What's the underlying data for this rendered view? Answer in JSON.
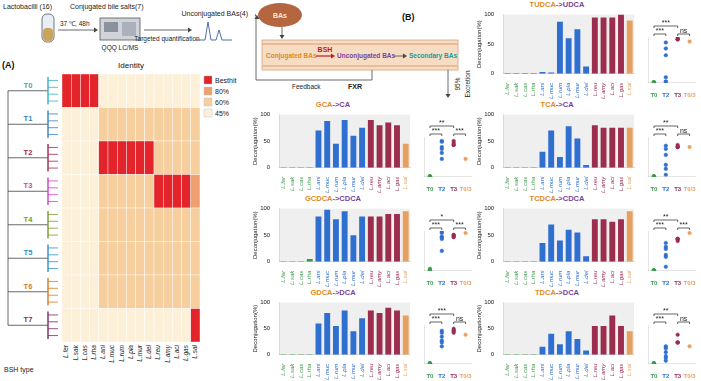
{
  "panel_a": {
    "label": "(A)",
    "workflow": {
      "strains": "Lactobacilli (16)",
      "substrates": "Conjugated bile salts(7)",
      "condition": "37 ℃, 48h",
      "instrument": "QQQ LC/MS",
      "method": "Targeted quantification",
      "products": "Unconjugated BAs(4)"
    },
    "heatmap": {
      "title": "Identity",
      "tree_label": "BSH type",
      "columns": [
        "L.fer",
        "L.sak",
        "L.cas",
        "L.rha",
        "L.ani",
        "L.muc",
        "L.rum",
        "L.pla",
        "L.mur",
        "L.del",
        "L.reu",
        "L.amy",
        "L.aci",
        "L.gas",
        "L.sal"
      ],
      "rows": [
        {
          "name": "T0",
          "color": "#37aec4",
          "values": [
            100,
            100,
            100,
            100,
            45,
            45,
            45,
            45,
            45,
            45,
            45,
            45,
            45,
            45,
            45
          ]
        },
        {
          "name": "T1",
          "color": "#3a7fc1",
          "values": [
            45,
            45,
            45,
            45,
            60,
            60,
            60,
            60,
            60,
            60,
            60,
            60,
            60,
            60,
            60
          ]
        },
        {
          "name": "T2",
          "color": "#a0294a",
          "values": [
            45,
            45,
            45,
            45,
            100,
            100,
            100,
            100,
            100,
            100,
            60,
            60,
            60,
            60,
            60
          ]
        },
        {
          "name": "T3",
          "color": "#cf3fc8",
          "values": [
            45,
            45,
            45,
            45,
            60,
            60,
            60,
            60,
            60,
            60,
            100,
            100,
            100,
            100,
            80
          ]
        },
        {
          "name": "T4",
          "color": "#7a9a2a",
          "values": [
            45,
            45,
            45,
            45,
            60,
            60,
            60,
            60,
            60,
            60,
            60,
            60,
            60,
            60,
            60
          ]
        },
        {
          "name": "T5",
          "color": "#2f8fc7",
          "values": [
            45,
            45,
            45,
            45,
            60,
            60,
            60,
            60,
            60,
            60,
            60,
            60,
            60,
            60,
            60
          ]
        },
        {
          "name": "T6",
          "color": "#d9781f",
          "values": [
            45,
            45,
            45,
            45,
            60,
            60,
            60,
            60,
            60,
            60,
            60,
            60,
            60,
            60,
            60
          ]
        },
        {
          "name": "T7",
          "color": "#7a2a6a",
          "values": [
            45,
            45,
            45,
            45,
            45,
            45,
            45,
            45,
            45,
            45,
            45,
            45,
            45,
            45,
            100
          ]
        }
      ],
      "legend": [
        {
          "label": "Besthit",
          "value": 100
        },
        {
          "label": "80%",
          "value": 80
        },
        {
          "label": "60%",
          "value": 60
        },
        {
          "label": "45%",
          "value": 45
        }
      ]
    }
  },
  "panel_b": {
    "label": "(B)",
    "diagram": {
      "liver": "BAs",
      "conjugated": "Conjugated BAs",
      "enzyme": "BSH",
      "unconjugated": "Unconjugated BAs",
      "secondary": "Secondary BAs",
      "feedback": "Feedback",
      "receptor": "FXR",
      "excretion_share": "95%",
      "excretion": "Excretion"
    },
    "groups": [
      {
        "name": "T0",
        "color": "#3c9a4a"
      },
      {
        "name": "T2",
        "color": "#2e6fd0"
      },
      {
        "name": "T3",
        "color": "#9b2d4f"
      },
      {
        "name": "T0/3",
        "color": "#e8a060"
      }
    ]
  },
  "chart_data": [
    {
      "type": "bar",
      "title": "TUDCA->UDCA",
      "y_label": "Deconjugation(%)",
      "ylim": [
        0,
        100
      ],
      "yticks": [
        0,
        50,
        100
      ],
      "categories": [
        "L.fer",
        "L.sak",
        "L.cas",
        "L.rha",
        "L.ani",
        "L.muc",
        "L.rum",
        "L.pla",
        "L.mur",
        "L.del",
        "L.reu",
        "L.amy",
        "L.aci",
        "L.gas",
        "L.sal"
      ],
      "colors": [
        "#3c9a4a",
        "#3c9a4a",
        "#3c9a4a",
        "#3c9a4a",
        "#2e6fd0",
        "#2e6fd0",
        "#2e6fd0",
        "#2e6fd0",
        "#2e6fd0",
        "#2e6fd0",
        "#9b2d4f",
        "#9b2d4f",
        "#9b2d4f",
        "#9b2d4f",
        "#e8a060"
      ],
      "values": [
        1,
        1,
        1,
        1,
        3,
        2,
        88,
        60,
        75,
        12,
        95,
        95,
        95,
        100,
        90
      ],
      "significance": [
        {
          "groups": [
            "T0",
            "T2"
          ],
          "label": "***"
        },
        {
          "groups": [
            "T0",
            "T3"
          ],
          "label": "***"
        },
        {
          "groups": [
            "T3",
            "T0/3"
          ],
          "label": "ns"
        }
      ]
    },
    {
      "type": "bar",
      "title": "GCA->CA",
      "y_label": "Deconjugation(%)",
      "ylim": [
        0,
        100
      ],
      "yticks": [
        0,
        50,
        100
      ],
      "categories": [
        "L.fer",
        "L.sak",
        "L.cas",
        "L.rha",
        "L.ani",
        "L.muc",
        "L.rum",
        "L.pla",
        "L.mur",
        "L.del",
        "L.reu",
        "L.amy",
        "L.aci",
        "L.gas",
        "L.sal"
      ],
      "colors": [
        "#3c9a4a",
        "#3c9a4a",
        "#3c9a4a",
        "#3c9a4a",
        "#2e6fd0",
        "#2e6fd0",
        "#2e6fd0",
        "#2e6fd0",
        "#2e6fd0",
        "#2e6fd0",
        "#9b2d4f",
        "#9b2d4f",
        "#9b2d4f",
        "#9b2d4f",
        "#e8a060"
      ],
      "values": [
        1,
        1,
        1,
        1,
        70,
        88,
        45,
        90,
        60,
        75,
        90,
        80,
        85,
        80,
        45
      ],
      "significance": [
        {
          "groups": [
            "T0",
            "T2"
          ],
          "label": "***"
        },
        {
          "groups": [
            "T0",
            "T3"
          ],
          "label": "**"
        },
        {
          "groups": [
            "T3",
            "T0/3"
          ],
          "label": "***"
        }
      ]
    },
    {
      "type": "bar",
      "title": "TCA->CA",
      "y_label": "Deconjugation(%)",
      "ylim": [
        0,
        100
      ],
      "yticks": [
        0,
        50,
        100
      ],
      "categories": [
        "L.fer",
        "L.sak",
        "L.cas",
        "L.rha",
        "L.ani",
        "L.muc",
        "L.rum",
        "L.pla",
        "L.mur",
        "L.del",
        "L.reu",
        "L.amy",
        "L.aci",
        "L.gas",
        "L.sal"
      ],
      "colors": [
        "#3c9a4a",
        "#3c9a4a",
        "#3c9a4a",
        "#3c9a4a",
        "#2e6fd0",
        "#2e6fd0",
        "#2e6fd0",
        "#2e6fd0",
        "#2e6fd0",
        "#2e6fd0",
        "#9b2d4f",
        "#9b2d4f",
        "#9b2d4f",
        "#9b2d4f",
        "#e8a060"
      ],
      "values": [
        1,
        1,
        1,
        1,
        30,
        70,
        20,
        78,
        55,
        5,
        80,
        75,
        75,
        75,
        75
      ],
      "significance": [
        {
          "groups": [
            "T0",
            "T2"
          ],
          "label": "***"
        },
        {
          "groups": [
            "T0",
            "T3"
          ],
          "label": "**"
        },
        {
          "groups": [
            "T3",
            "T0/3"
          ],
          "label": "ns"
        }
      ]
    },
    {
      "type": "bar",
      "title": "GCDCA->CDCA",
      "y_label": "Deconjugation(%)",
      "ylim": [
        0,
        100
      ],
      "yticks": [
        0,
        50,
        100
      ],
      "categories": [
        "L.fer",
        "L.sak",
        "L.cas",
        "L.rha",
        "L.ani",
        "L.muc",
        "L.rum",
        "L.pla",
        "L.mur",
        "L.del",
        "L.reu",
        "L.amy",
        "L.aci",
        "L.gas",
        "L.sal"
      ],
      "colors": [
        "#3c9a4a",
        "#3c9a4a",
        "#3c9a4a",
        "#3c9a4a",
        "#2e6fd0",
        "#2e6fd0",
        "#2e6fd0",
        "#2e6fd0",
        "#2e6fd0",
        "#2e6fd0",
        "#9b2d4f",
        "#9b2d4f",
        "#9b2d4f",
        "#9b2d4f",
        "#e8a060"
      ],
      "values": [
        1,
        1,
        1,
        5,
        85,
        98,
        80,
        95,
        50,
        85,
        85,
        85,
        90,
        90,
        95
      ],
      "significance": [
        {
          "groups": [
            "T0",
            "T2"
          ],
          "label": "***"
        },
        {
          "groups": [
            "T0",
            "T3"
          ],
          "label": "*"
        },
        {
          "groups": [
            "T3",
            "T0/3"
          ],
          "label": "***"
        }
      ]
    },
    {
      "type": "bar",
      "title": "TCDCA->CDCA",
      "y_label": "Deconjugation(%)",
      "ylim": [
        0,
        100
      ],
      "yticks": [
        0,
        50,
        100
      ],
      "categories": [
        "L.fer",
        "L.sak",
        "L.cas",
        "L.rha",
        "L.ani",
        "L.muc",
        "L.rum",
        "L.pla",
        "L.mur",
        "L.del",
        "L.reu",
        "L.amy",
        "L.aci",
        "L.gas",
        "L.sal"
      ],
      "colors": [
        "#3c9a4a",
        "#3c9a4a",
        "#3c9a4a",
        "#3c9a4a",
        "#2e6fd0",
        "#2e6fd0",
        "#2e6fd0",
        "#2e6fd0",
        "#2e6fd0",
        "#2e6fd0",
        "#9b2d4f",
        "#9b2d4f",
        "#9b2d4f",
        "#9b2d4f",
        "#e8a060"
      ],
      "values": [
        1,
        1,
        1,
        1,
        35,
        70,
        40,
        60,
        55,
        10,
        80,
        80,
        75,
        80,
        95
      ],
      "significance": [
        {
          "groups": [
            "T0",
            "T2"
          ],
          "label": "***"
        },
        {
          "groups": [
            "T0",
            "T3"
          ],
          "label": "**"
        },
        {
          "groups": [
            "T3",
            "T0/3"
          ],
          "label": "***"
        }
      ]
    },
    {
      "type": "bar",
      "title": "GDCA->DCA",
      "y_label": "Deconjugation(%)",
      "ylim": [
        0,
        100
      ],
      "yticks": [
        0,
        50,
        100
      ],
      "categories": [
        "L.fer",
        "L.sak",
        "L.cas",
        "L.rha",
        "L.ani",
        "L.muc",
        "L.rum",
        "L.pla",
        "L.mur",
        "L.del",
        "L.reu",
        "L.amy",
        "L.aci",
        "L.gas",
        "L.sal"
      ],
      "colors": [
        "#3c9a4a",
        "#3c9a4a",
        "#3c9a4a",
        "#3c9a4a",
        "#2e6fd0",
        "#2e6fd0",
        "#2e6fd0",
        "#2e6fd0",
        "#2e6fd0",
        "#2e6fd0",
        "#9b2d4f",
        "#9b2d4f",
        "#9b2d4f",
        "#9b2d4f",
        "#e8a060"
      ],
      "values": [
        1,
        1,
        1,
        1,
        60,
        80,
        55,
        85,
        45,
        70,
        85,
        80,
        90,
        85,
        75
      ],
      "significance": [
        {
          "groups": [
            "T0",
            "T2"
          ],
          "label": "***"
        },
        {
          "groups": [
            "T0",
            "T3"
          ],
          "label": "***"
        },
        {
          "groups": [
            "T3",
            "T0/3"
          ],
          "label": "ns"
        }
      ]
    },
    {
      "type": "bar",
      "title": "TDCA->DCA",
      "y_label": "Deconjugation(%)",
      "ylim": [
        0,
        100
      ],
      "yticks": [
        0,
        50,
        100
      ],
      "categories": [
        "L.fer",
        "L.sak",
        "L.cas",
        "L.rha",
        "L.ani",
        "L.muc",
        "L.rum",
        "L.pla",
        "L.mur",
        "L.del",
        "L.reu",
        "L.amy",
        "L.aci",
        "L.gas",
        "L.sal"
      ],
      "colors": [
        "#3c9a4a",
        "#3c9a4a",
        "#3c9a4a",
        "#3c9a4a",
        "#2e6fd0",
        "#2e6fd0",
        "#2e6fd0",
        "#2e6fd0",
        "#2e6fd0",
        "#2e6fd0",
        "#9b2d4f",
        "#9b2d4f",
        "#9b2d4f",
        "#9b2d4f",
        "#e8a060"
      ],
      "values": [
        1,
        1,
        1,
        1,
        15,
        40,
        20,
        45,
        30,
        8,
        55,
        55,
        75,
        55,
        45
      ],
      "significance": [
        {
          "groups": [
            "T0",
            "T2"
          ],
          "label": "***"
        },
        {
          "groups": [
            "T0",
            "T3"
          ],
          "label": "**"
        },
        {
          "groups": [
            "T3",
            "T0/3"
          ],
          "label": "ns"
        }
      ]
    }
  ]
}
